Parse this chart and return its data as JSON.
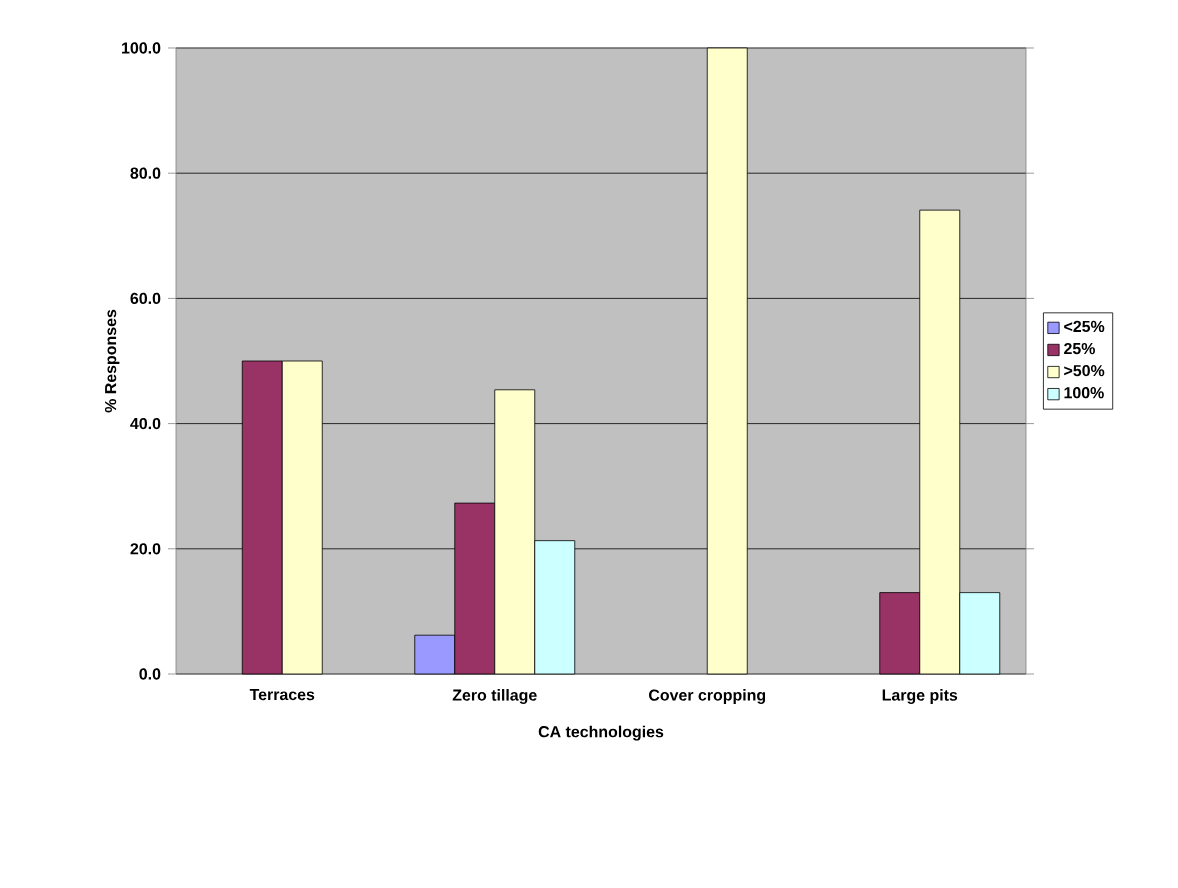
{
  "chart_data": {
    "type": "bar",
    "xlabel": "CA technologies",
    "ylabel": "% Responses",
    "categories": [
      "Terraces",
      "Zero tillage",
      "Cover cropping",
      "Large pits"
    ],
    "series": [
      {
        "name": "<25%",
        "color": "#9999ff",
        "values": [
          null,
          6.2,
          null,
          null
        ]
      },
      {
        "name": "25%",
        "color": "#993366",
        "values": [
          50,
          27.3,
          null,
          13
        ]
      },
      {
        "name": ">50%",
        "color": "#ffffcc",
        "values": [
          50,
          45.4,
          100,
          74.1
        ]
      },
      {
        "name": "100%",
        "color": "#ccffff",
        "values": [
          null,
          21.3,
          null,
          13
        ]
      }
    ],
    "ylim": [
      0,
      100
    ],
    "yticks": [
      {
        "value": 0,
        "label": "0.0"
      },
      {
        "value": 20,
        "label": "20.0"
      },
      {
        "value": 40,
        "label": "40.0"
      },
      {
        "value": 60,
        "label": "60.0"
      },
      {
        "value": 80,
        "label": "80.0"
      },
      {
        "value": 100,
        "label": "100.0"
      }
    ],
    "grid": "y",
    "legend": "right"
  }
}
